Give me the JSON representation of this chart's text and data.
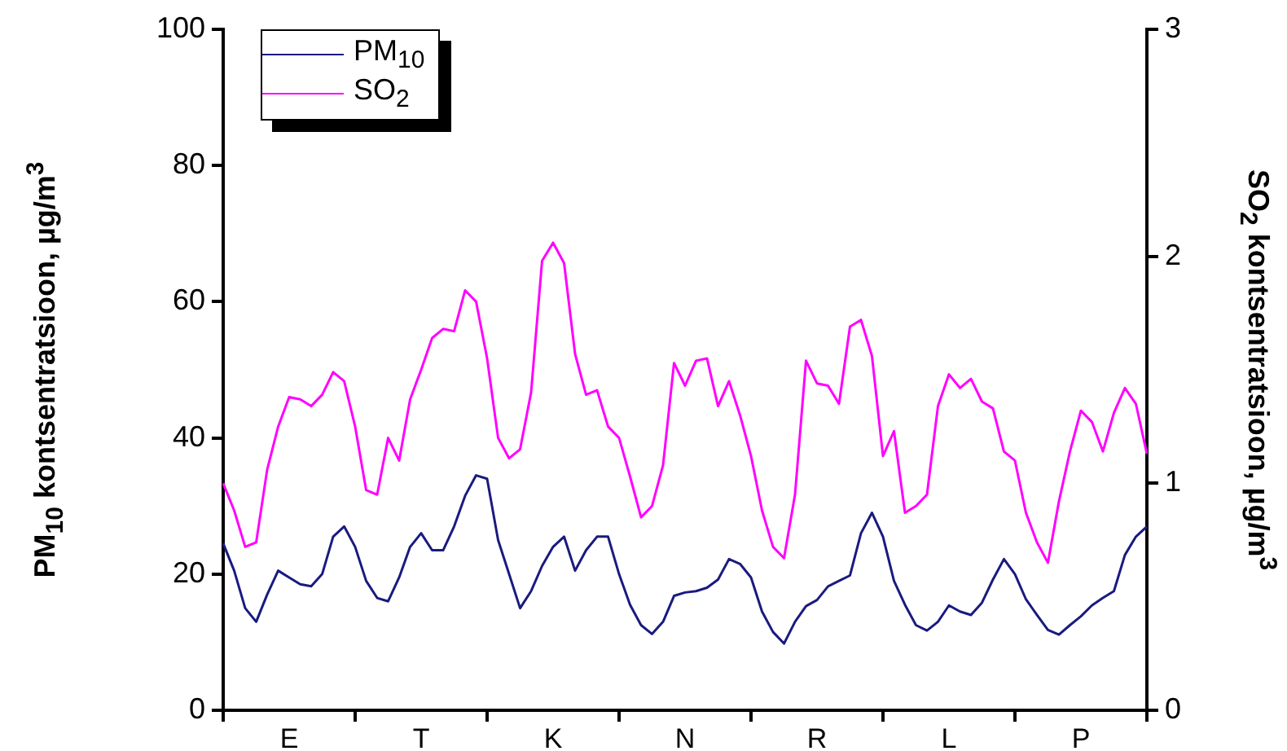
{
  "chart_data": {
    "type": "line",
    "ylabel": "PM$_{10}$ kontsentratsioon, µg/m$^{3}$",
    "y2label": "SO$_{2}$ kontsentratsioon, µg/m$^{3}$",
    "categories": [
      null,
      null,
      null,
      null,
      null,
      null,
      "E",
      null,
      null,
      null,
      null,
      null,
      null,
      null,
      null,
      null,
      null,
      null,
      "T",
      null,
      null,
      null,
      null,
      null,
      null,
      null,
      null,
      null,
      null,
      null,
      "K",
      null,
      null,
      null,
      null,
      null,
      null,
      null,
      null,
      null,
      null,
      null,
      "N",
      null,
      null,
      null,
      null,
      null,
      null,
      null,
      null,
      null,
      null,
      null,
      "R",
      null,
      null,
      null,
      null,
      null,
      null,
      null,
      null,
      null,
      null,
      null,
      "L",
      null,
      null,
      null,
      null,
      null,
      null,
      null,
      null,
      null,
      null,
      null,
      "P",
      null,
      null,
      null,
      null,
      null,
      null
    ],
    "ylim": [
      0,
      100
    ],
    "yticks": [
      0,
      20,
      40,
      60,
      80,
      100
    ],
    "y2lim": [
      0,
      3
    ],
    "y2ticks": [
      0,
      1,
      2,
      3
    ],
    "grid": false,
    "legend": "top left",
    "marker": "none",
    "line_style": "solid",
    "series": [
      {
        "name": "PM$_{10}$",
        "color": "#1a1a80",
        "values": [
          24.5,
          20.5,
          15,
          13,
          17,
          20.5,
          19.5,
          18.5,
          18.2,
          20,
          25.5,
          27,
          24,
          19,
          16.5,
          16,
          19.5,
          24,
          26,
          23.5,
          23.5,
          27,
          31.5,
          34.5,
          34,
          25,
          20,
          15,
          17.5,
          21.2,
          24,
          25.5,
          20.5,
          23.5,
          25.5,
          25.5,
          20,
          15.5,
          12.5,
          11.2,
          13,
          16.8,
          17.3,
          17.5,
          18,
          19.2,
          22.2,
          21.5,
          19.5,
          14.5,
          11.5,
          9.8,
          13,
          15.3,
          16.2,
          18.2,
          19,
          19.8,
          26,
          29,
          25.5,
          19,
          15.5,
          12.5,
          11.7,
          13,
          15.4,
          14.5,
          14,
          15.8,
          19.2,
          22.2,
          20,
          16.3,
          14,
          11.8,
          11.1,
          12.5,
          13.8,
          15.4,
          16.5,
          17.5,
          22.8,
          25.5,
          27
        ]
      },
      {
        "name": "SO$_{2}$",
        "color": "#ff00ff",
        "axis": "y2",
        "values": [
          1.0,
          0.88,
          0.72,
          0.74,
          1.06,
          1.25,
          1.38,
          1.37,
          1.34,
          1.39,
          1.49,
          1.45,
          1.25,
          0.97,
          0.95,
          1.2,
          1.1,
          1.37,
          1.5,
          1.64,
          1.68,
          1.67,
          1.85,
          1.8,
          1.55,
          1.2,
          1.11,
          1.15,
          1.4,
          1.98,
          2.06,
          1.97,
          1.57,
          1.39,
          1.41,
          1.25,
          1.2,
          1.03,
          0.85,
          0.9,
          1.08,
          1.53,
          1.43,
          1.54,
          1.55,
          1.34,
          1.45,
          1.3,
          1.12,
          0.88,
          0.72,
          0.67,
          0.95,
          1.54,
          1.44,
          1.43,
          1.35,
          1.69,
          1.72,
          1.56,
          1.12,
          1.23,
          0.87,
          0.9,
          0.95,
          1.34,
          1.48,
          1.42,
          1.46,
          1.36,
          1.33,
          1.14,
          1.1,
          0.87,
          0.74,
          0.65,
          0.92,
          1.14,
          1.32,
          1.27,
          1.14,
          1.31,
          1.42,
          1.35,
          1.13
        ]
      }
    ]
  }
}
